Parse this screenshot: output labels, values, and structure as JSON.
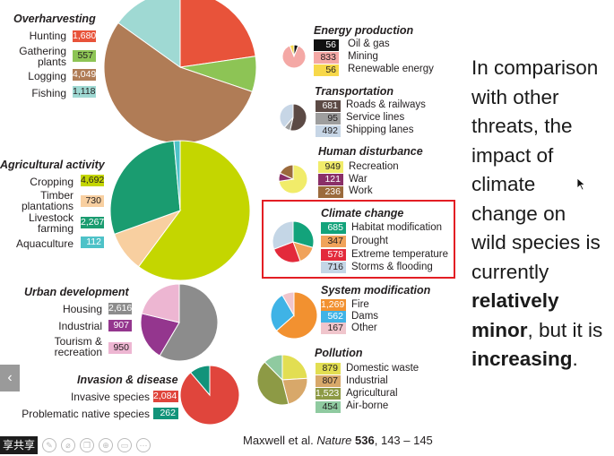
{
  "categories": [
    {
      "title": "Overharvesting",
      "items": [
        {
          "label": "Hunting",
          "value": "1,680",
          "color": "#e8533a"
        },
        {
          "label": "Gathering plants",
          "value": "557",
          "color": "#8dc455"
        },
        {
          "label": "Logging",
          "value": "4,049",
          "color": "#b07c56"
        },
        {
          "label": "Fishing",
          "value": "1,118",
          "color": "#9fd9d3"
        }
      ]
    },
    {
      "title": "Agricultural activity",
      "items": [
        {
          "label": "Cropping",
          "value": "4,692",
          "color": "#c4d600"
        },
        {
          "label": "Timber plantations",
          "value": "730",
          "color": "#f8cfa0"
        },
        {
          "label": "Livestock farming",
          "value": "2,267",
          "color": "#1a9c70"
        },
        {
          "label": "Aquaculture",
          "value": "112",
          "color": "#4ec2c8"
        }
      ]
    },
    {
      "title": "Urban development",
      "items": [
        {
          "label": "Housing",
          "value": "2,616",
          "color": "#8c8c8c"
        },
        {
          "label": "Industrial",
          "value": "907",
          "color": "#94368e"
        },
        {
          "label": "Tourism & recreation",
          "value": "950",
          "color": "#edb6d2"
        }
      ]
    },
    {
      "title": "Invasion & disease",
      "items": [
        {
          "label": "Invasive species",
          "value": "2,084",
          "color": "#e0453c"
        },
        {
          "label": "Problematic native species",
          "value": "262",
          "color": "#12937a"
        }
      ]
    },
    {
      "title": "Energy production",
      "items": [
        {
          "label": "Oil & gas",
          "value": "56",
          "color": "#111111"
        },
        {
          "label": "Mining",
          "value": "833",
          "color": "#f4a8a5"
        },
        {
          "label": "Renewable energy",
          "value": "56",
          "color": "#f7d84a"
        }
      ]
    },
    {
      "title": "Transportation",
      "items": [
        {
          "label": "Roads & railways",
          "value": "681",
          "color": "#5c4a45"
        },
        {
          "label": "Service lines",
          "value": "95",
          "color": "#9e9e9e"
        },
        {
          "label": "Shipping lanes",
          "value": "492",
          "color": "#c7d6e6"
        }
      ]
    },
    {
      "title": "Human disturbance",
      "items": [
        {
          "label": "Recreation",
          "value": "949",
          "color": "#f1ec6a"
        },
        {
          "label": "War",
          "value": "121",
          "color": "#8a2f68"
        },
        {
          "label": "Work",
          "value": "236",
          "color": "#9b6a3c"
        }
      ]
    },
    {
      "title": "Climate change",
      "items": [
        {
          "label": "Habitat modification",
          "value": "685",
          "color": "#13a37b"
        },
        {
          "label": "Drought",
          "value": "347",
          "color": "#f0a35b"
        },
        {
          "label": "Extreme temperature",
          "value": "578",
          "color": "#e32a3b"
        },
        {
          "label": "Storms & flooding",
          "value": "716",
          "color": "#c4d6e6"
        }
      ]
    },
    {
      "title": "System modification",
      "items": [
        {
          "label": "Fire",
          "value": "1,269",
          "color": "#f29130"
        },
        {
          "label": "Dams",
          "value": "562",
          "color": "#3fb3e6"
        },
        {
          "label": "Other",
          "value": "167",
          "color": "#f0c5cc"
        }
      ]
    },
    {
      "title": "Pollution",
      "items": [
        {
          "label": "Domestic waste",
          "value": "879",
          "color": "#e2de52"
        },
        {
          "label": "Industrial",
          "value": "807",
          "color": "#d8a86a"
        },
        {
          "label": "Agricultural",
          "value": "1,523",
          "color": "#8d9a45"
        },
        {
          "label": "Air-borne",
          "value": "454",
          "color": "#8fcaa0"
        }
      ]
    }
  ],
  "slide_text": {
    "line1": "In comparison",
    "line2": "with other",
    "line3": "threats, the",
    "line4": "impact of",
    "line5": "climate",
    "line6": "change on",
    "line7": "wild species is",
    "line8": "currently",
    "line9_bold": "relatively",
    "line10_bold": "minor",
    "line10_rest": ", but it is",
    "line11_bold": "increasing",
    "line11_rest": "."
  },
  "citation": {
    "authors": "Maxwell et al.",
    "journal": "Nature",
    "volume": "536",
    "pages": ", 143 – 145"
  },
  "controls": {
    "prev_arrow": "‹",
    "share_label": "享共享"
  }
}
